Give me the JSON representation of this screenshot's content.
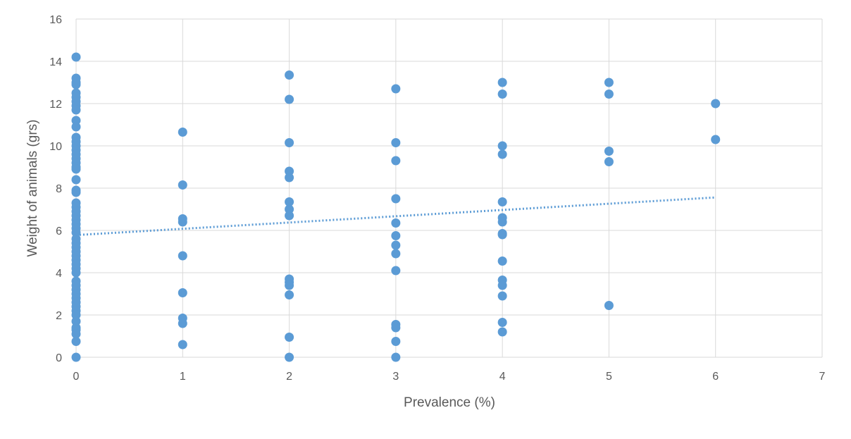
{
  "chart_data": {
    "type": "scatter",
    "title": "",
    "xlabel": "Prevalence (%)",
    "ylabel": "Weight of animals (grs)",
    "xlim": [
      0,
      7
    ],
    "ylim": [
      0,
      16
    ],
    "x_ticks": [
      "0",
      "1",
      "2",
      "3",
      "4",
      "5",
      "6",
      "7"
    ],
    "y_ticks": [
      "0",
      "2",
      "4",
      "6",
      "8",
      "10",
      "12",
      "14",
      "16"
    ],
    "grid": true,
    "legend": "none",
    "marker_color": "#5B9BD5",
    "trendline": {
      "type": "linear",
      "style": "dotted",
      "color": "#5B9BD5",
      "x": [
        0,
        6
      ],
      "y": [
        5.78,
        7.56
      ]
    },
    "series": [
      {
        "points": [
          [
            0,
            14.2
          ],
          [
            0,
            13.2
          ],
          [
            0,
            13.0
          ],
          [
            0,
            12.9
          ],
          [
            0,
            12.5
          ],
          [
            0,
            12.3
          ],
          [
            0,
            12.1
          ],
          [
            0,
            11.9
          ],
          [
            0,
            11.7
          ],
          [
            0,
            11.2
          ],
          [
            0,
            10.9
          ],
          [
            0,
            10.4
          ],
          [
            0,
            10.2
          ],
          [
            0,
            10.0
          ],
          [
            0,
            9.8
          ],
          [
            0,
            9.6
          ],
          [
            0,
            9.4
          ],
          [
            0,
            9.2
          ],
          [
            0,
            9.0
          ],
          [
            0,
            8.9
          ],
          [
            0,
            8.4
          ],
          [
            0,
            7.9
          ],
          [
            0,
            7.8
          ],
          [
            0,
            7.3
          ],
          [
            0,
            7.1
          ],
          [
            0,
            6.9
          ],
          [
            0,
            6.7
          ],
          [
            0,
            6.5
          ],
          [
            0,
            6.3
          ],
          [
            0,
            6.1
          ],
          [
            0,
            5.9
          ],
          [
            0,
            5.6
          ],
          [
            0,
            5.4
          ],
          [
            0,
            5.2
          ],
          [
            0,
            5.0
          ],
          [
            0,
            4.8
          ],
          [
            0,
            4.6
          ],
          [
            0,
            4.4
          ],
          [
            0,
            4.2
          ],
          [
            0,
            4.0
          ],
          [
            0,
            3.6
          ],
          [
            0,
            3.4
          ],
          [
            0,
            3.2
          ],
          [
            0,
            3.0
          ],
          [
            0,
            2.8
          ],
          [
            0,
            2.6
          ],
          [
            0,
            2.4
          ],
          [
            0,
            2.2
          ],
          [
            0,
            2.0
          ],
          [
            0,
            1.7
          ],
          [
            0,
            1.4
          ],
          [
            0,
            1.3
          ],
          [
            0,
            1.1
          ],
          [
            0,
            0.75
          ],
          [
            0,
            0.0
          ],
          [
            1,
            10.65
          ],
          [
            1,
            8.15
          ],
          [
            1,
            6.55
          ],
          [
            1,
            6.4
          ],
          [
            1,
            4.8
          ],
          [
            1,
            3.05
          ],
          [
            1,
            1.85
          ],
          [
            1,
            1.6
          ],
          [
            1,
            0.6
          ],
          [
            2,
            13.35
          ],
          [
            2,
            12.2
          ],
          [
            2,
            10.15
          ],
          [
            2,
            8.8
          ],
          [
            2,
            8.5
          ],
          [
            2,
            7.35
          ],
          [
            2,
            7.0
          ],
          [
            2,
            6.7
          ],
          [
            2,
            3.7
          ],
          [
            2,
            3.55
          ],
          [
            2,
            3.4
          ],
          [
            2,
            2.95
          ],
          [
            2,
            0.95
          ],
          [
            2,
            0.0
          ],
          [
            3,
            12.7
          ],
          [
            3,
            10.15
          ],
          [
            3,
            9.3
          ],
          [
            3,
            7.5
          ],
          [
            3,
            6.35
          ],
          [
            3,
            5.75
          ],
          [
            3,
            5.3
          ],
          [
            3,
            4.9
          ],
          [
            3,
            4.1
          ],
          [
            3,
            1.55
          ],
          [
            3,
            1.4
          ],
          [
            3,
            0.75
          ],
          [
            3,
            0.0
          ],
          [
            4,
            13.0
          ],
          [
            4,
            12.45
          ],
          [
            4,
            10.0
          ],
          [
            4,
            9.6
          ],
          [
            4,
            7.35
          ],
          [
            4,
            6.6
          ],
          [
            4,
            6.4
          ],
          [
            4,
            5.85
          ],
          [
            4,
            5.8
          ],
          [
            4,
            4.55
          ],
          [
            4,
            3.65
          ],
          [
            4,
            3.4
          ],
          [
            4,
            2.9
          ],
          [
            4,
            1.65
          ],
          [
            4,
            1.2
          ],
          [
            5,
            13.0
          ],
          [
            5,
            12.45
          ],
          [
            5,
            9.75
          ],
          [
            5,
            9.25
          ],
          [
            5,
            2.45
          ],
          [
            6,
            12.0
          ],
          [
            6,
            10.3
          ]
        ]
      }
    ]
  }
}
